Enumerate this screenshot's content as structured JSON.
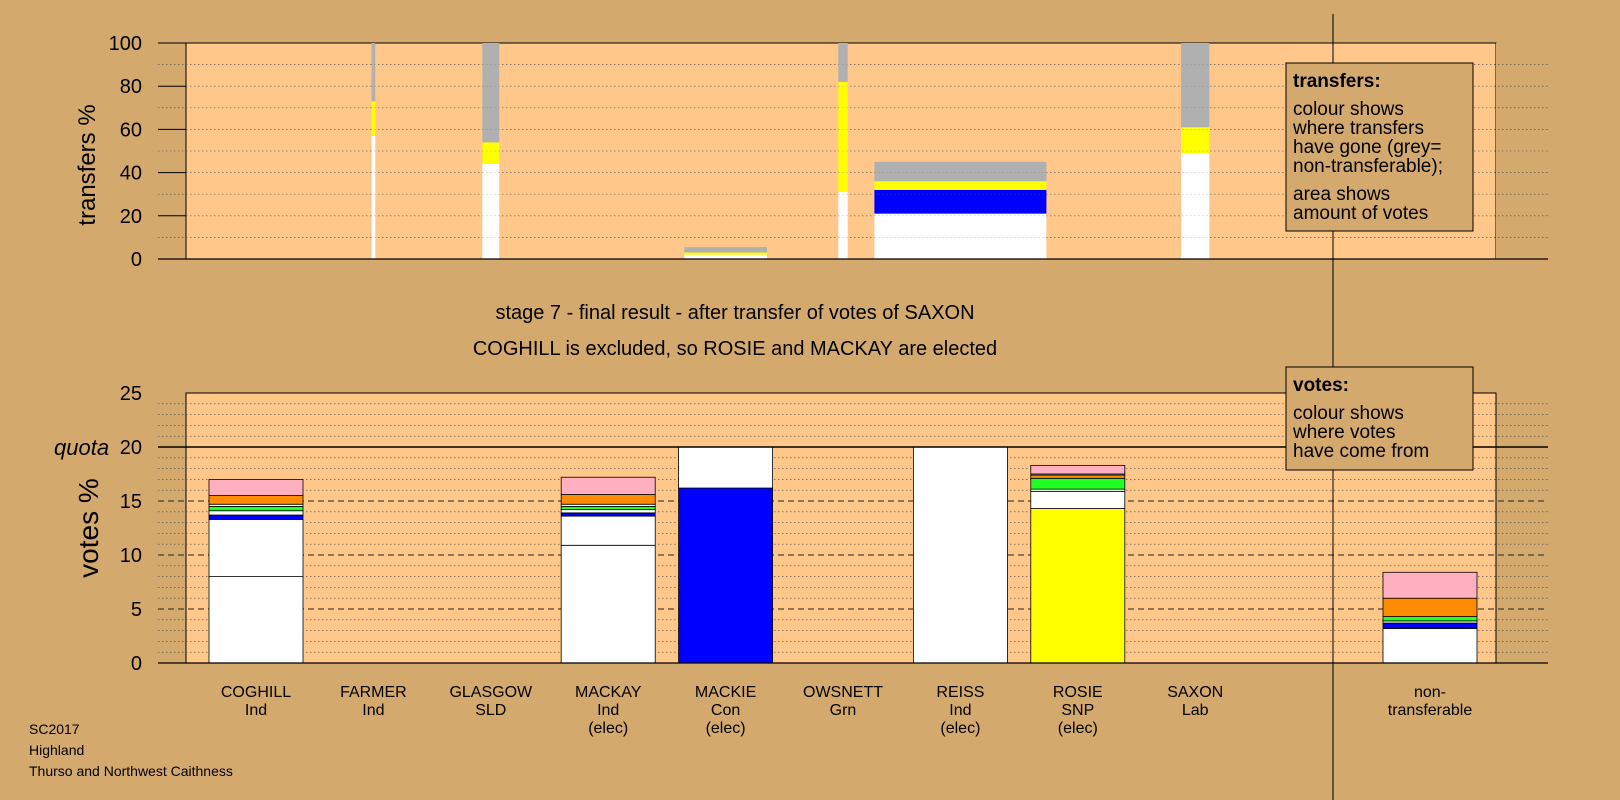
{
  "colors": {
    "background": "#d4a96e",
    "plot_background": "#ffc88a",
    "white": "#ffffff",
    "blue": "#0000ff",
    "yellow": "#ffff00",
    "green": "#22ff22",
    "orange": "#ff8c00",
    "pink": "#ffb0c0",
    "grey": "#b0b0b0"
  },
  "header": {
    "stage_text": "stage 7 - final result - after transfer of votes of SAXON",
    "result_text": "COGHILL is excluded, so ROSIE and MACKAY are elected"
  },
  "footer": {
    "line1": "SC2017",
    "line2": "Highland",
    "line3": "Thurso and Northwest Caithness"
  },
  "chart_data": [
    {
      "type": "bar",
      "panel": "transfers",
      "ylabel": "transfers %",
      "ylim": [
        0,
        100
      ],
      "yticks": [
        "0",
        "20",
        "40",
        "60",
        "80",
        "100"
      ],
      "legend": {
        "position": "top-right",
        "title": "transfers:",
        "lines1": [
          "colour shows",
          "where transfers",
          "have gone (grey=",
          "non-transferable);"
        ],
        "lines2": [
          "area shows",
          "amount of votes"
        ]
      },
      "bars": [
        {
          "candidate": "FARMER",
          "share": 0.04,
          "segments": [
            {
              "color": "white",
              "value": 57
            },
            {
              "color": "yellow",
              "value": 16
            },
            {
              "color": "grey",
              "value": 27
            }
          ]
        },
        {
          "candidate": "GLASGOW",
          "share": 0.18,
          "segments": [
            {
              "color": "white",
              "value": 44
            },
            {
              "color": "yellow",
              "value": 10
            },
            {
              "color": "grey",
              "value": 46
            }
          ]
        },
        {
          "candidate": "MACKIE",
          "share": 0.88,
          "partial": true,
          "segments": [
            {
              "color": "white",
              "value": 2
            },
            {
              "color": "yellow",
              "value": 1
            },
            {
              "color": "grey",
              "value": 2.5
            }
          ]
        },
        {
          "candidate": "OWSNETT",
          "share": 0.1,
          "segments": [
            {
              "color": "white",
              "value": 31
            },
            {
              "color": "yellow",
              "value": 51
            },
            {
              "color": "grey",
              "value": 18
            }
          ]
        },
        {
          "candidate": "REISS",
          "share": 1.83,
          "partial": true,
          "segments": [
            {
              "color": "white",
              "value": 21
            },
            {
              "color": "blue",
              "value": 11
            },
            {
              "color": "yellow",
              "value": 4
            },
            {
              "color": "grey",
              "value": 9
            }
          ]
        },
        {
          "candidate": "SAXON",
          "share": 0.3,
          "segments": [
            {
              "color": "white",
              "value": 49
            },
            {
              "color": "yellow",
              "value": 12
            },
            {
              "color": "grey",
              "value": 39
            }
          ]
        }
      ]
    },
    {
      "type": "bar",
      "panel": "votes",
      "ylabel": "votes %",
      "ylim": [
        0,
        25
      ],
      "yticks": [
        "0",
        "5",
        "10",
        "15",
        "20",
        "25"
      ],
      "quota": 20,
      "quota_label": "quota",
      "legend": {
        "position": "top-right",
        "title": "votes:",
        "lines1": [
          "colour shows",
          "where votes",
          "have come from"
        ]
      },
      "categories": [
        {
          "name": "COGHILL",
          "party": "Ind",
          "note": ""
        },
        {
          "name": "FARMER",
          "party": "Ind",
          "note": ""
        },
        {
          "name": "GLASGOW",
          "party": "SLD",
          "note": ""
        },
        {
          "name": "MACKAY",
          "party": "Ind",
          "note": "(elec)"
        },
        {
          "name": "MACKIE",
          "party": "Con",
          "note": "(elec)"
        },
        {
          "name": "OWSNETT",
          "party": "Grn",
          "note": ""
        },
        {
          "name": "REISS",
          "party": "Ind",
          "note": "(elec)"
        },
        {
          "name": "ROSIE",
          "party": "SNP",
          "note": "(elec)"
        },
        {
          "name": "SAXON",
          "party": "Lab",
          "note": ""
        },
        {
          "name": "",
          "party": "",
          "note": ""
        },
        {
          "name": "non-",
          "party": "transferable",
          "note": ""
        }
      ],
      "bars": [
        {
          "candidate": "COGHILL",
          "segments": [
            {
              "color": "white",
              "value": 8.0
            },
            {
              "color": "white",
              "value": 5.3
            },
            {
              "color": "blue",
              "value": 0.4
            },
            {
              "color": "white",
              "value": 0.4
            },
            {
              "color": "green",
              "value": 0.4
            },
            {
              "color": "white",
              "value": 0.2
            },
            {
              "color": "orange",
              "value": 0.8
            },
            {
              "color": "pink",
              "value": 1.5
            }
          ]
        },
        {
          "candidate": "MACKAY",
          "segments": [
            {
              "color": "white",
              "value": 10.9
            },
            {
              "color": "white",
              "value": 2.7
            },
            {
              "color": "blue",
              "value": 0.3
            },
            {
              "color": "white",
              "value": 0.3
            },
            {
              "color": "green",
              "value": 0.3
            },
            {
              "color": "white",
              "value": 0.2
            },
            {
              "color": "orange",
              "value": 0.9
            },
            {
              "color": "pink",
              "value": 1.6
            }
          ]
        },
        {
          "candidate": "MACKIE",
          "segments": [
            {
              "color": "blue",
              "value": 16.2
            },
            {
              "color": "white",
              "value": 3.8
            }
          ]
        },
        {
          "candidate": "REISS",
          "segments": [
            {
              "color": "white",
              "value": 20.0
            }
          ]
        },
        {
          "candidate": "ROSIE",
          "segments": [
            {
              "color": "yellow",
              "value": 14.3
            },
            {
              "color": "white",
              "value": 1.6
            },
            {
              "color": "white",
              "value": 0.2
            },
            {
              "color": "green",
              "value": 1.0
            },
            {
              "color": "orange",
              "value": 0.3
            },
            {
              "color": "white",
              "value": 0.1
            },
            {
              "color": "pink",
              "value": 0.8
            }
          ]
        },
        {
          "candidate": "non-transferable",
          "segments": [
            {
              "color": "white",
              "value": 3.2
            },
            {
              "color": "blue",
              "value": 0.5
            },
            {
              "color": "white",
              "value": 0.2
            },
            {
              "color": "green",
              "value": 0.4
            },
            {
              "color": "orange",
              "value": 1.7
            },
            {
              "color": "pink",
              "value": 2.4
            }
          ]
        }
      ]
    }
  ]
}
